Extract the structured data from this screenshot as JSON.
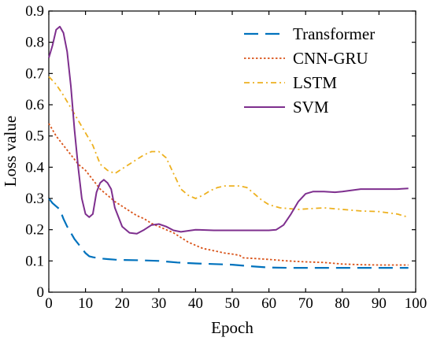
{
  "chart_data": {
    "type": "line",
    "title": "",
    "xlabel": "Epoch",
    "ylabel": "Loss value",
    "xlim": [
      0,
      100
    ],
    "ylim": [
      0,
      0.9
    ],
    "x_ticks": [
      0,
      10,
      20,
      30,
      40,
      50,
      60,
      70,
      80,
      90,
      100
    ],
    "y_ticks": [
      0,
      0.1,
      0.2,
      0.3,
      0.4,
      0.5,
      0.6,
      0.7,
      0.8,
      0.9
    ],
    "x_tick_labels": [
      "0",
      "10",
      "20",
      "30",
      "40",
      "50",
      "60",
      "70",
      "80",
      "90",
      "100"
    ],
    "y_tick_labels": [
      "0",
      "0.1",
      "0.2",
      "0.3",
      "0.4",
      "0.5",
      "0.6",
      "0.7",
      "0.8",
      "0.9"
    ],
    "grid": false,
    "legend_position": "top-right",
    "series": [
      {
        "name": "Transformer",
        "color": "#0072BD",
        "style": "dashed",
        "points": [
          [
            0,
            0.3
          ],
          [
            1,
            0.285
          ],
          [
            2,
            0.275
          ],
          [
            3,
            0.265
          ],
          [
            4,
            0.235
          ],
          [
            5,
            0.21
          ],
          [
            6,
            0.19
          ],
          [
            7,
            0.17
          ],
          [
            8,
            0.155
          ],
          [
            9,
            0.14
          ],
          [
            10,
            0.125
          ],
          [
            11,
            0.115
          ],
          [
            12,
            0.112
          ],
          [
            14,
            0.108
          ],
          [
            16,
            0.106
          ],
          [
            18,
            0.104
          ],
          [
            20,
            0.103
          ],
          [
            25,
            0.102
          ],
          [
            30,
            0.1
          ],
          [
            35,
            0.095
          ],
          [
            40,
            0.092
          ],
          [
            45,
            0.09
          ],
          [
            50,
            0.088
          ],
          [
            55,
            0.083
          ],
          [
            60,
            0.079
          ],
          [
            65,
            0.078
          ],
          [
            70,
            0.078
          ],
          [
            80,
            0.078
          ],
          [
            90,
            0.078
          ],
          [
            98,
            0.078
          ]
        ]
      },
      {
        "name": "CNN-GRU",
        "color": "#D95319",
        "style": "dotted",
        "points": [
          [
            0,
            0.54
          ],
          [
            2,
            0.5
          ],
          [
            4,
            0.47
          ],
          [
            6,
            0.44
          ],
          [
            8,
            0.41
          ],
          [
            10,
            0.39
          ],
          [
            12,
            0.36
          ],
          [
            14,
            0.33
          ],
          [
            16,
            0.31
          ],
          [
            18,
            0.29
          ],
          [
            20,
            0.275
          ],
          [
            22,
            0.26
          ],
          [
            24,
            0.245
          ],
          [
            26,
            0.235
          ],
          [
            28,
            0.22
          ],
          [
            30,
            0.21
          ],
          [
            32,
            0.2
          ],
          [
            34,
            0.19
          ],
          [
            36,
            0.175
          ],
          [
            38,
            0.16
          ],
          [
            40,
            0.15
          ],
          [
            42,
            0.14
          ],
          [
            44,
            0.135
          ],
          [
            46,
            0.13
          ],
          [
            48,
            0.125
          ],
          [
            50,
            0.122
          ],
          [
            52,
            0.118
          ],
          [
            53,
            0.11
          ],
          [
            56,
            0.108
          ],
          [
            60,
            0.105
          ],
          [
            65,
            0.1
          ],
          [
            70,
            0.097
          ],
          [
            75,
            0.095
          ],
          [
            80,
            0.09
          ],
          [
            85,
            0.088
          ],
          [
            90,
            0.087
          ],
          [
            98,
            0.087
          ]
        ]
      },
      {
        "name": "LSTM",
        "color": "#EDB120",
        "style": "dashdot",
        "points": [
          [
            0,
            0.69
          ],
          [
            2,
            0.665
          ],
          [
            4,
            0.63
          ],
          [
            6,
            0.59
          ],
          [
            8,
            0.55
          ],
          [
            10,
            0.51
          ],
          [
            12,
            0.47
          ],
          [
            13,
            0.44
          ],
          [
            14,
            0.41
          ],
          [
            16,
            0.39
          ],
          [
            18,
            0.38
          ],
          [
            20,
            0.395
          ],
          [
            22,
            0.41
          ],
          [
            24,
            0.425
          ],
          [
            26,
            0.44
          ],
          [
            28,
            0.45
          ],
          [
            30,
            0.45
          ],
          [
            32,
            0.43
          ],
          [
            34,
            0.38
          ],
          [
            36,
            0.33
          ],
          [
            38,
            0.31
          ],
          [
            40,
            0.3
          ],
          [
            42,
            0.31
          ],
          [
            44,
            0.325
          ],
          [
            46,
            0.335
          ],
          [
            48,
            0.34
          ],
          [
            52,
            0.34
          ],
          [
            54,
            0.335
          ],
          [
            56,
            0.315
          ],
          [
            58,
            0.295
          ],
          [
            60,
            0.28
          ],
          [
            63,
            0.27
          ],
          [
            68,
            0.265
          ],
          [
            75,
            0.27
          ],
          [
            80,
            0.265
          ],
          [
            85,
            0.26
          ],
          [
            90,
            0.258
          ],
          [
            95,
            0.25
          ],
          [
            98,
            0.24
          ]
        ]
      },
      {
        "name": "SVM",
        "color": "#7E2F8E",
        "style": "solid",
        "points": [
          [
            0,
            0.75
          ],
          [
            1,
            0.79
          ],
          [
            2,
            0.84
          ],
          [
            3,
            0.85
          ],
          [
            4,
            0.83
          ],
          [
            5,
            0.77
          ],
          [
            6,
            0.66
          ],
          [
            7,
            0.52
          ],
          [
            8,
            0.4
          ],
          [
            9,
            0.3
          ],
          [
            10,
            0.25
          ],
          [
            11,
            0.24
          ],
          [
            12,
            0.25
          ],
          [
            13,
            0.32
          ],
          [
            14,
            0.35
          ],
          [
            15,
            0.36
          ],
          [
            16,
            0.35
          ],
          [
            17,
            0.33
          ],
          [
            18,
            0.27
          ],
          [
            20,
            0.21
          ],
          [
            22,
            0.19
          ],
          [
            24,
            0.187
          ],
          [
            26,
            0.2
          ],
          [
            28,
            0.215
          ],
          [
            30,
            0.218
          ],
          [
            32,
            0.21
          ],
          [
            34,
            0.198
          ],
          [
            36,
            0.193
          ],
          [
            40,
            0.2
          ],
          [
            45,
            0.198
          ],
          [
            50,
            0.198
          ],
          [
            55,
            0.198
          ],
          [
            60,
            0.198
          ],
          [
            62,
            0.2
          ],
          [
            64,
            0.215
          ],
          [
            66,
            0.25
          ],
          [
            68,
            0.29
          ],
          [
            70,
            0.315
          ],
          [
            72,
            0.322
          ],
          [
            75,
            0.322
          ],
          [
            78,
            0.32
          ],
          [
            80,
            0.322
          ],
          [
            85,
            0.33
          ],
          [
            90,
            0.33
          ],
          [
            95,
            0.33
          ],
          [
            98,
            0.332
          ]
        ]
      }
    ]
  }
}
